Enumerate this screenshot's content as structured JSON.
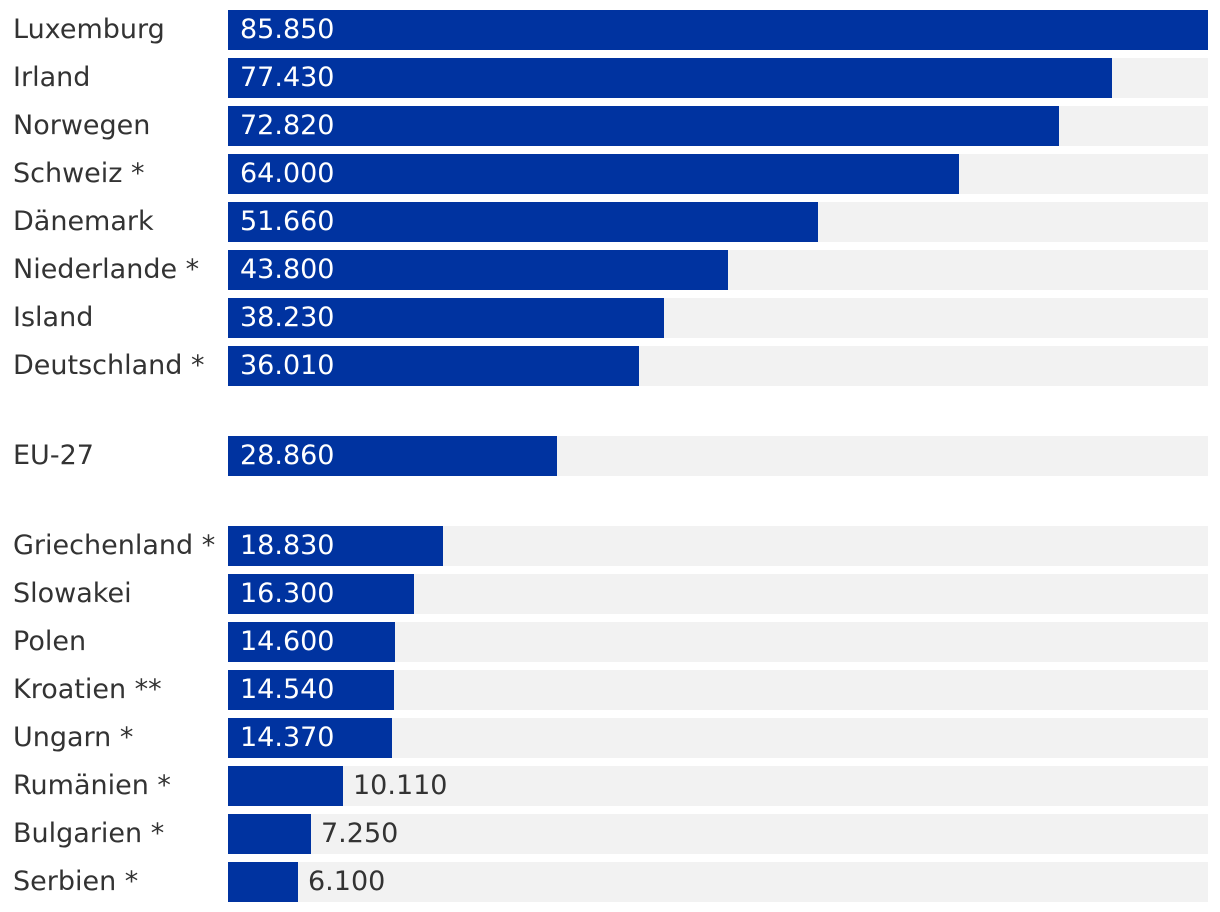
{
  "chart_data": {
    "type": "bar",
    "orientation": "horizontal",
    "bar_color": "#0033a0",
    "track_color": "#f2f2f2",
    "xlim": [
      0,
      85850
    ],
    "groups": [
      {
        "items": [
          {
            "label": "Luxemburg",
            "value": 85850,
            "value_label": "85.850"
          },
          {
            "label": "Irland",
            "value": 77430,
            "value_label": "77.430"
          },
          {
            "label": "Norwegen",
            "value": 72820,
            "value_label": "72.820"
          },
          {
            "label": "Schweiz *",
            "value": 64000,
            "value_label": "64.000"
          },
          {
            "label": "Dänemark",
            "value": 51660,
            "value_label": "51.660"
          },
          {
            "label": "Niederlande *",
            "value": 43800,
            "value_label": "43.800"
          },
          {
            "label": "Island",
            "value": 38230,
            "value_label": "38.230"
          },
          {
            "label": "Deutschland *",
            "value": 36010,
            "value_label": "36.010"
          }
        ]
      },
      {
        "items": [
          {
            "label": "EU-27",
            "value": 28860,
            "value_label": "28.860"
          }
        ]
      },
      {
        "items": [
          {
            "label": "Griechenland *",
            "value": 18830,
            "value_label": "18.830"
          },
          {
            "label": "Slowakei",
            "value": 16300,
            "value_label": "16.300"
          },
          {
            "label": "Polen",
            "value": 14600,
            "value_label": "14.600"
          },
          {
            "label": "Kroatien **",
            "value": 14540,
            "value_label": "14.540"
          },
          {
            "label": "Ungarn *",
            "value": 14370,
            "value_label": "14.370"
          },
          {
            "label": "Rumänien *",
            "value": 10110,
            "value_label": "10.110"
          },
          {
            "label": "Bulgarien *",
            "value": 7250,
            "value_label": "7.250"
          },
          {
            "label": "Serbien *",
            "value": 6100,
            "value_label": "6.100"
          }
        ]
      }
    ]
  }
}
